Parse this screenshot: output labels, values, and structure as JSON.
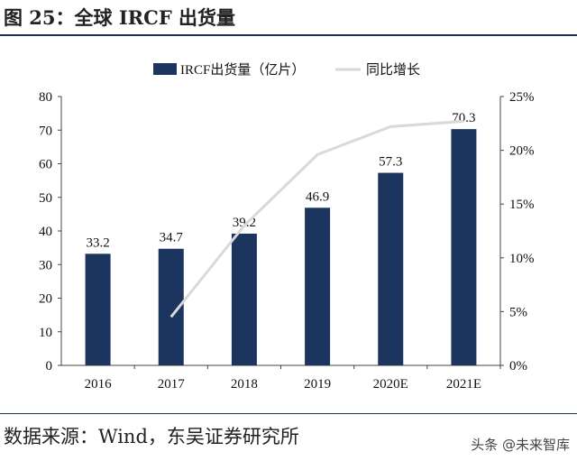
{
  "title": "图 25：全球 IRCF 出货量",
  "source": "数据来源：Wind，东吴证券研究所",
  "watermark": "头条 @未来智库",
  "chart_data": {
    "type": "bar+line",
    "categories": [
      "2016",
      "2017",
      "2018",
      "2019",
      "2020E",
      "2021E"
    ],
    "series": [
      {
        "name": "IRCF出货量（亿片）",
        "type": "bar",
        "axis": "left",
        "color": "#1b355e",
        "values": [
          33.2,
          34.7,
          39.2,
          46.9,
          57.3,
          70.3
        ],
        "labels": [
          "33.2",
          "34.7",
          "39.2",
          "46.9",
          "57.3",
          "70.3"
        ]
      },
      {
        "name": "同比增长",
        "type": "line",
        "axis": "right",
        "color": "#d9d9d9",
        "values": [
          null,
          4.5,
          13.0,
          19.6,
          22.2,
          22.7
        ]
      }
    ],
    "ylim": [
      0,
      80
    ],
    "yticks": [
      "0",
      "10",
      "20",
      "30",
      "40",
      "50",
      "60",
      "70",
      "80"
    ],
    "y2lim": [
      0,
      25
    ],
    "y2ticks": [
      "0%",
      "5%",
      "10%",
      "15%",
      "20%",
      "25%"
    ],
    "legend": "top",
    "grid": false
  }
}
